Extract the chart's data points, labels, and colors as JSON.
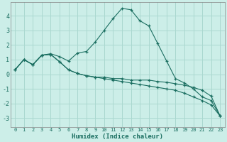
{
  "xlabel": "Humidex (Indice chaleur)",
  "ylabel": "",
  "bg_color": "#cceee8",
  "grid_color": "#aad8d0",
  "line_color": "#1a6e60",
  "xlim": [
    -0.5,
    23.5
  ],
  "ylim": [
    -3.6,
    4.9
  ],
  "xticks": [
    0,
    1,
    2,
    3,
    4,
    5,
    6,
    7,
    8,
    9,
    10,
    11,
    12,
    13,
    14,
    15,
    16,
    17,
    18,
    19,
    20,
    21,
    22,
    23
  ],
  "yticks": [
    -3,
    -2,
    -1,
    0,
    1,
    2,
    3,
    4
  ],
  "series": [
    [
      0.3,
      1.0,
      0.65,
      1.3,
      1.4,
      1.2,
      0.9,
      1.45,
      1.55,
      2.2,
      3.0,
      3.8,
      4.5,
      4.4,
      3.65,
      3.3,
      2.1,
      0.9,
      -0.3,
      -0.6,
      -1.0,
      -1.55,
      -1.8,
      -2.85
    ],
    [
      0.3,
      1.0,
      0.65,
      1.3,
      1.35,
      0.85,
      0.3,
      0.05,
      -0.1,
      -0.2,
      -0.2,
      -0.3,
      -0.3,
      -0.4,
      -0.4,
      -0.4,
      -0.5,
      -0.55,
      -0.65,
      -0.75,
      -0.9,
      -1.1,
      -1.5,
      -2.85
    ],
    [
      0.3,
      1.0,
      0.65,
      1.3,
      1.35,
      0.85,
      0.3,
      0.05,
      -0.1,
      -0.2,
      -0.3,
      -0.4,
      -0.5,
      -0.6,
      -0.7,
      -0.8,
      -0.9,
      -1.0,
      -1.1,
      -1.3,
      -1.55,
      -1.8,
      -2.1,
      -2.85
    ]
  ]
}
